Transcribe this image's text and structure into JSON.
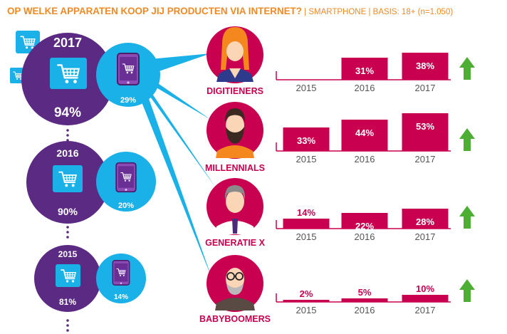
{
  "header": {
    "question": "OP WELKE APPARATEN KOOP JIJ PRODUCTEN VIA INTERNET?",
    "sep": " | ",
    "device": "SMARTPHONE",
    "basis": "BASIS: 18+ (n=1.050)"
  },
  "colors": {
    "purple": "#5b2a83",
    "cyan": "#1ab0e8",
    "crimson": "#c8004f",
    "orange": "#f08a24",
    "green": "#4caf33"
  },
  "years_total": [
    {
      "year": "2017",
      "total": "94%",
      "smartphone": "29%"
    },
    {
      "year": "2016",
      "total": "90%",
      "smartphone": "20%"
    },
    {
      "year": "2015",
      "total": "81%",
      "smartphone": "14%"
    }
  ],
  "chart_data": {
    "type": "bar",
    "categories": [
      "2015",
      "2016",
      "2017"
    ],
    "groups": [
      {
        "name": "DIGITIENERS",
        "values": [
          null,
          31,
          38
        ],
        "labels": [
          "",
          "31%",
          "38%"
        ],
        "trend": "up"
      },
      {
        "name": "MILLENNIALS",
        "values": [
          33,
          44,
          53
        ],
        "labels": [
          "33%",
          "44%",
          "53%"
        ],
        "trend": "up"
      },
      {
        "name": "GENERATIE X",
        "values": [
          14,
          22,
          28
        ],
        "labels": [
          "14%",
          "22%",
          "28%"
        ],
        "trend": "up"
      },
      {
        "name": "BABYBOOMERS",
        "values": [
          2,
          5,
          10
        ],
        "labels": [
          "2%",
          "5%",
          "10%"
        ],
        "trend": "up"
      }
    ]
  }
}
